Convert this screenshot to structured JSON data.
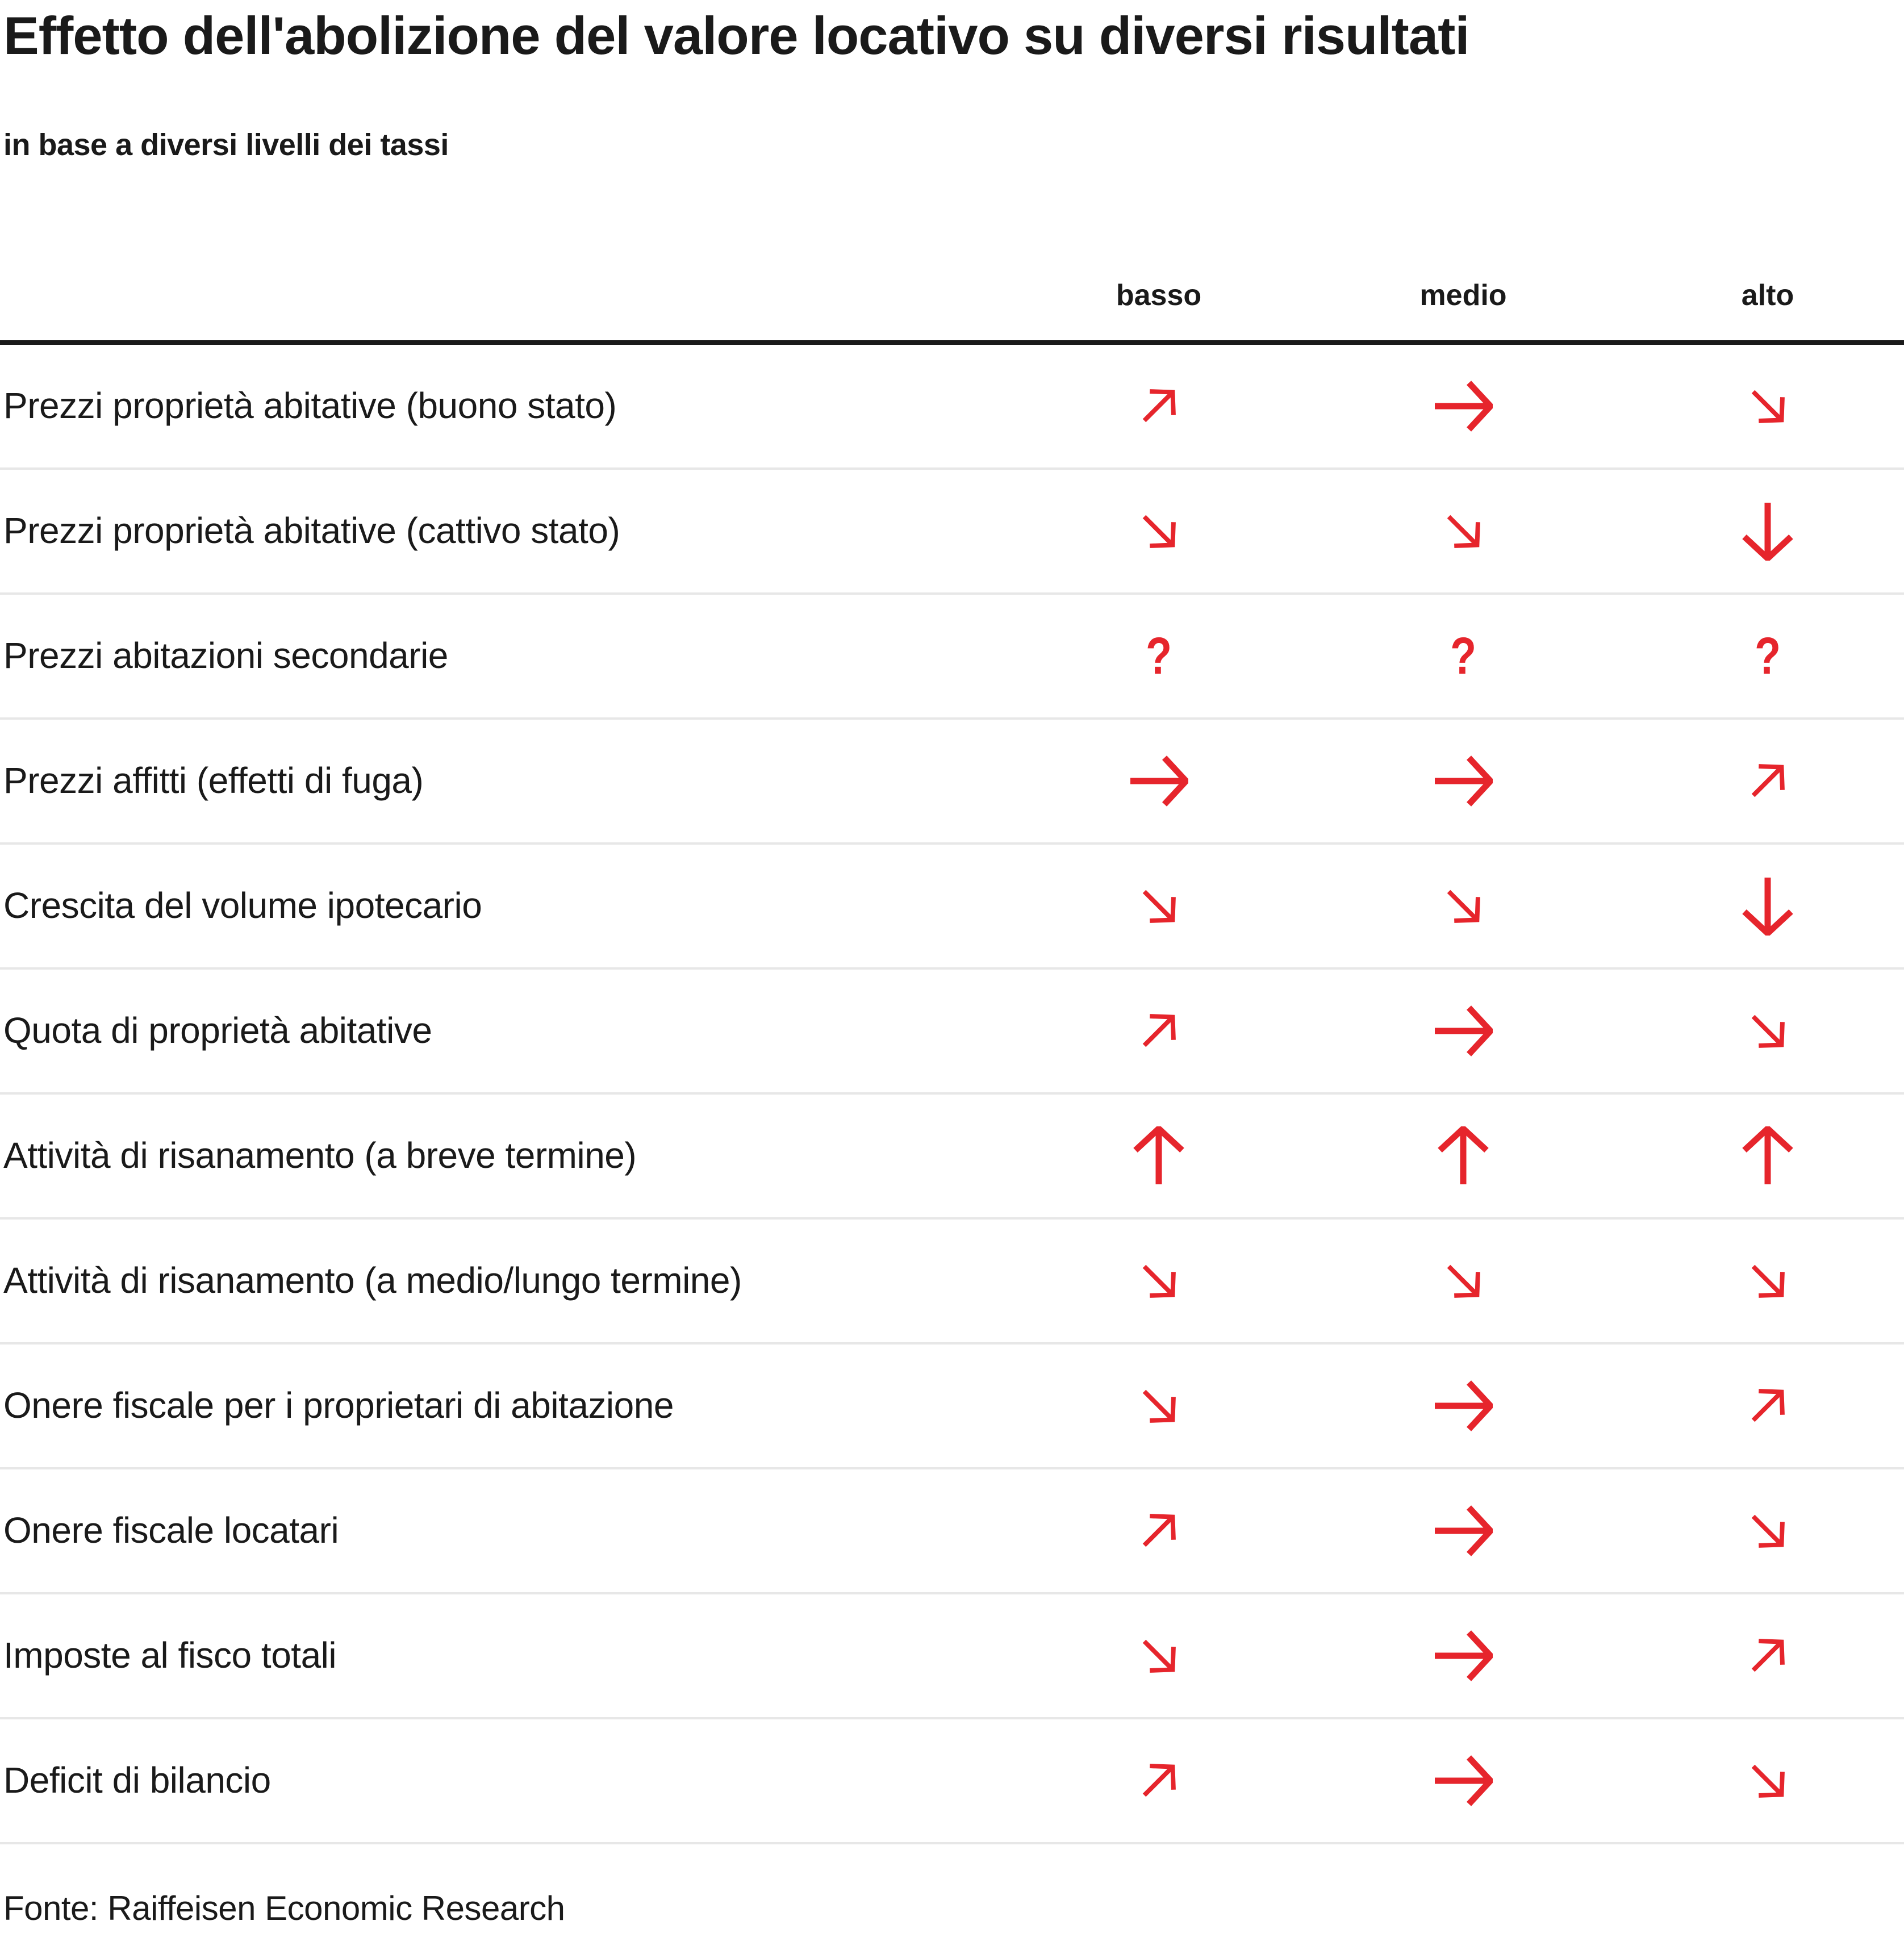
{
  "chart_data": {
    "type": "table",
    "title": "Effetto dell'abolizione del valore locativo su diversi risultati",
    "subtitle": "in base a diversi livelli dei tassi",
    "columns": [
      "basso",
      "medio",
      "alto"
    ],
    "rows": [
      {
        "label": "Prezzi proprietà abitative (buono stato)",
        "values": [
          "up-right",
          "right",
          "down-right"
        ]
      },
      {
        "label": "Prezzi proprietà abitative (cattivo stato)",
        "values": [
          "down-right",
          "down-right",
          "down"
        ]
      },
      {
        "label": "Prezzi abitazioni secondarie",
        "values": [
          "question",
          "question",
          "question"
        ]
      },
      {
        "label": "Prezzi affitti (effetti di fuga)",
        "values": [
          "right",
          "right",
          "up-right"
        ]
      },
      {
        "label": "Crescita del volume ipotecario",
        "values": [
          "down-right",
          "down-right",
          "down"
        ]
      },
      {
        "label": "Quota di proprietà abitative",
        "values": [
          "up-right",
          "right",
          "down-right"
        ]
      },
      {
        "label": "Attività di risanamento (a breve termine)",
        "values": [
          "up",
          "up",
          "up"
        ]
      },
      {
        "label": "Attività di risanamento (a medio/lungo termine)",
        "values": [
          "down-right",
          "down-right",
          "down-right"
        ]
      },
      {
        "label": "Onere fiscale per i proprietari di abitazione",
        "values": [
          "down-right",
          "right",
          "up-right"
        ]
      },
      {
        "label": "Onere fiscale locatari",
        "values": [
          "up-right",
          "right",
          "down-right"
        ]
      },
      {
        "label": "Imposte al fisco totali",
        "values": [
          "down-right",
          "right",
          "up-right"
        ]
      },
      {
        "label": "Deficit di bilancio",
        "values": [
          "up-right",
          "right",
          "down-right"
        ]
      }
    ],
    "source": "Fonte: Raiffeisen Economic Research",
    "legend_position": "none",
    "grid": "horizontal-dividers"
  },
  "symbols": {
    "up": "↑",
    "down": "↓",
    "right": "→",
    "up-right": "↗",
    "down-right": "↘",
    "question": "?"
  },
  "colors": {
    "arrow": "#e6252c",
    "text": "#1a1a1a",
    "header_rule": "#1a1a1a",
    "row_divider": "#e7e7e7",
    "background": "#ffffff"
  }
}
